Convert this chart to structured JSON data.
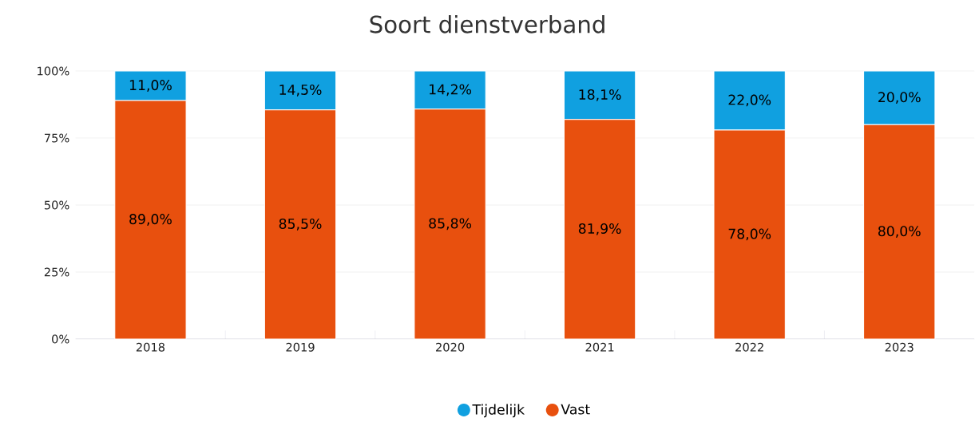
{
  "chart_data": {
    "type": "bar",
    "title": "Soort dienstverband",
    "stacked": true,
    "categories": [
      "2018",
      "2019",
      "2020",
      "2021",
      "2022",
      "2023"
    ],
    "series": [
      {
        "name": "Vast",
        "color": "#e8500e",
        "values": [
          89.0,
          85.5,
          85.8,
          81.9,
          78.0,
          80.0
        ],
        "value_labels": [
          "89,0%",
          "85,5%",
          "85,8%",
          "81,9%",
          "78,0%",
          "80,0%"
        ]
      },
      {
        "name": "Tijdelijk",
        "color": "#10a0e0",
        "values": [
          11.0,
          14.5,
          14.2,
          18.1,
          22.0,
          20.0
        ],
        "value_labels": [
          "11,0%",
          "14,5%",
          "14,2%",
          "18,1%",
          "22,0%",
          "20,0%"
        ]
      }
    ],
    "ylim": [
      0,
      100
    ],
    "yticks": [
      {
        "value": 0,
        "label": "0%"
      },
      {
        "value": 25,
        "label": "25%"
      },
      {
        "value": 50,
        "label": "50%"
      },
      {
        "value": 75,
        "label": "75%"
      },
      {
        "value": 100,
        "label": "100%"
      }
    ],
    "grid": "y",
    "legend": "bottom"
  }
}
